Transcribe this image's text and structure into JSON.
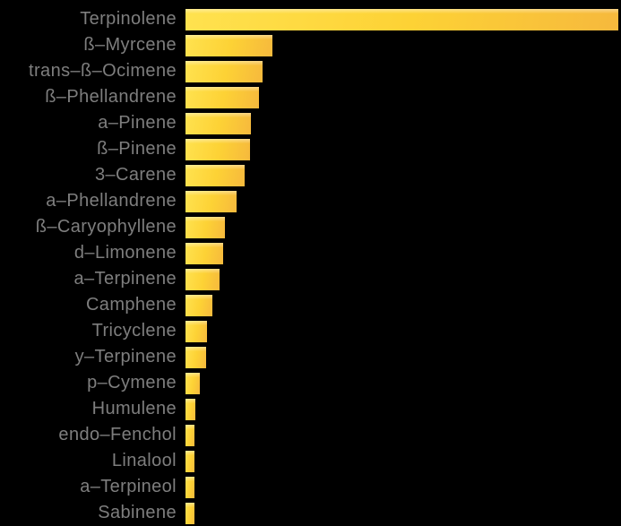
{
  "page": {
    "background_color": "#000000"
  },
  "chart_data": {
    "type": "bar",
    "orientation": "horizontal",
    "title": "",
    "xlabel": "",
    "ylabel": "",
    "grid": false,
    "legend": false,
    "axis_labels_visible": false,
    "value_unit": "relative length (% of largest bar; no numeric axis shown)",
    "xlim": [
      0,
      100
    ],
    "categories": [
      "Terpinolene",
      "ß–Myrcene",
      "trans–ß–Ocimene",
      "ß–Phellandrene",
      "a–Pinene",
      "ß–Pinene",
      "3–Carene",
      "a–Phellandrene",
      "ß–Caryophyllene",
      "d–Limonene",
      "a–Terpinene",
      "Camphene",
      "Tricyclene",
      "y–Terpinene",
      "p–Cymene",
      "Humulene",
      "endo–Fenchol",
      "Linalool",
      "a–Terpineol",
      "Sabinene"
    ],
    "values": [
      100,
      20.1,
      17.8,
      17.0,
      15.1,
      14.9,
      13.7,
      11.8,
      9.1,
      8.7,
      7.9,
      6.2,
      5.0,
      4.8,
      3.3,
      2.2,
      2.0,
      2.0,
      2.0,
      2.1
    ],
    "colors": {
      "bar_gradient_start": "#FFE24F",
      "bar_gradient_mid": "#FDD235",
      "bar_gradient_end": "#F6B93D",
      "label_text": "#7E7E7E",
      "background": "#000000"
    }
  }
}
